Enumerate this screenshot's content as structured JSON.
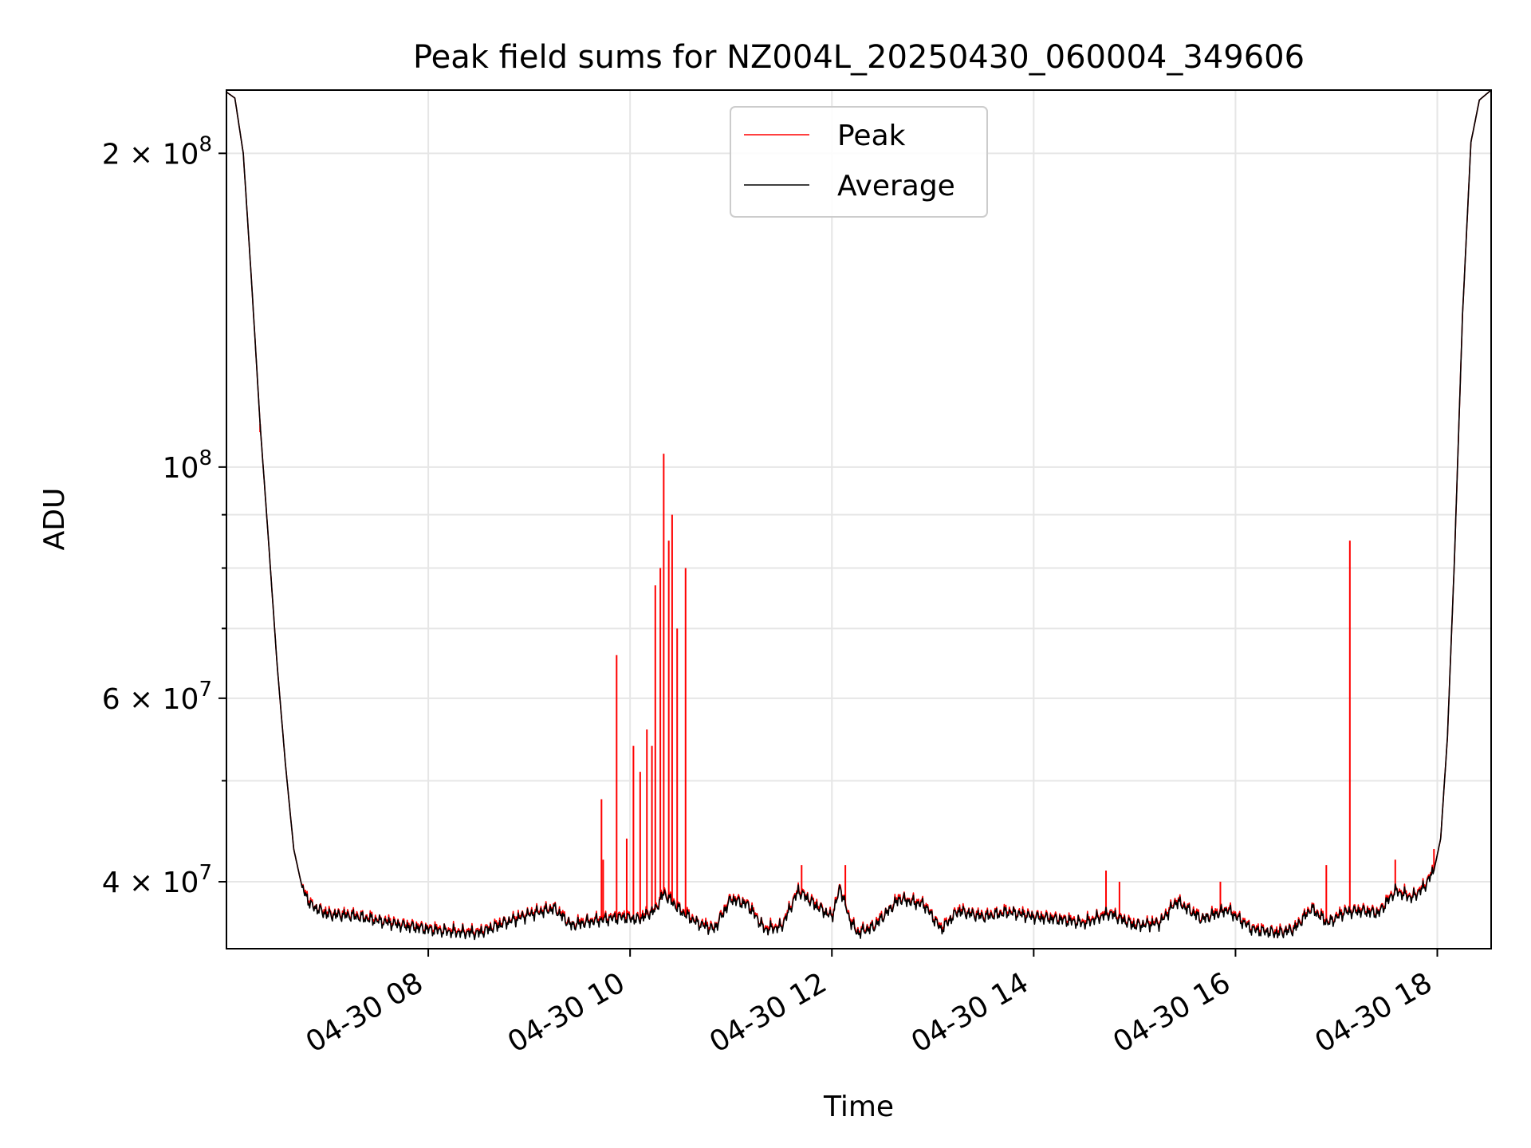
{
  "chart_data": {
    "type": "line",
    "title": "Peak field sums for NZ004L_20250430_060004_349606",
    "xlabel": "Time",
    "ylabel": "ADU",
    "y_scale": "log",
    "ylim": [
      34500000,
      230000000
    ],
    "xlim": [
      "04-30 06:00",
      "04-30 18:32"
    ],
    "grid": true,
    "legend_position": "top-center",
    "x_ticks": [
      "04-30 08",
      "04-30 10",
      "04-30 12",
      "04-30 14",
      "04-30 16",
      "04-30 18"
    ],
    "y_major_ticks": [
      {
        "value": 40000000,
        "label_base": "4 × 10",
        "label_exp": "7"
      },
      {
        "value": 60000000,
        "label_base": "6 × 10",
        "label_exp": "7"
      },
      {
        "value": 100000000,
        "label_base": "10",
        "label_exp": "8"
      },
      {
        "value": 200000000,
        "label_base": "2 × 10",
        "label_exp": "8"
      }
    ],
    "y_minor_ticks": [
      50000000,
      70000000,
      80000000,
      90000000,
      300000000
    ],
    "series": [
      {
        "name": "Peak",
        "color": "#ff0000",
        "baseline": "average",
        "spikes": [
          {
            "x": "04-30 06:20",
            "y": 108000000
          },
          {
            "x": "04-30 09:43",
            "y": 48000000
          },
          {
            "x": "04-30 09:44",
            "y": 42000000
          },
          {
            "x": "04-30 09:52",
            "y": 66000000
          },
          {
            "x": "04-30 09:58",
            "y": 44000000
          },
          {
            "x": "04-30 10:02",
            "y": 54000000
          },
          {
            "x": "04-30 10:06",
            "y": 51000000
          },
          {
            "x": "04-30 10:10",
            "y": 56000000
          },
          {
            "x": "04-30 10:13",
            "y": 54000000
          },
          {
            "x": "04-30 10:15",
            "y": 77000000
          },
          {
            "x": "04-30 10:18",
            "y": 80000000
          },
          {
            "x": "04-30 10:20",
            "y": 103000000
          },
          {
            "x": "04-30 10:23",
            "y": 85000000
          },
          {
            "x": "04-30 10:25",
            "y": 90000000
          },
          {
            "x": "04-30 10:28",
            "y": 70000000
          },
          {
            "x": "04-30 10:33",
            "y": 80000000
          },
          {
            "x": "04-30 11:42",
            "y": 41500000
          },
          {
            "x": "04-30 12:08",
            "y": 41500000
          },
          {
            "x": "04-30 14:43",
            "y": 41000000
          },
          {
            "x": "04-30 14:51",
            "y": 40000000
          },
          {
            "x": "04-30 15:51",
            "y": 40000000
          },
          {
            "x": "04-30 16:54",
            "y": 41500000
          },
          {
            "x": "04-30 17:08",
            "y": 85000000
          },
          {
            "x": "04-30 17:35",
            "y": 42000000
          },
          {
            "x": "04-30 17:58",
            "y": 43000000
          }
        ]
      },
      {
        "name": "Average",
        "color": "#000000",
        "points": [
          [
            "04-30 06:00",
            229000000
          ],
          [
            "04-30 06:05",
            226000000
          ],
          [
            "04-30 06:10",
            200000000
          ],
          [
            "04-30 06:15",
            150000000
          ],
          [
            "04-30 06:20",
            110000000
          ],
          [
            "04-30 06:25",
            85000000
          ],
          [
            "04-30 06:30",
            65000000
          ],
          [
            "04-30 06:35",
            52000000
          ],
          [
            "04-30 06:40",
            43000000
          ],
          [
            "04-30 06:45",
            39500000
          ],
          [
            "04-30 06:50",
            38000000
          ],
          [
            "04-30 07:00",
            37200000
          ],
          [
            "04-30 07:15",
            37100000
          ],
          [
            "04-30 07:30",
            36700000
          ],
          [
            "04-30 07:45",
            36300000
          ],
          [
            "04-30 08:00",
            36000000
          ],
          [
            "04-30 08:15",
            35800000
          ],
          [
            "04-30 08:30",
            35700000
          ],
          [
            "04-30 08:45",
            36500000
          ],
          [
            "04-30 09:00",
            37200000
          ],
          [
            "04-30 09:15",
            37700000
          ],
          [
            "04-30 09:25",
            36300000
          ],
          [
            "04-30 09:35",
            36600000
          ],
          [
            "04-30 09:45",
            36800000
          ],
          [
            "04-30 09:55",
            37000000
          ],
          [
            "04-30 10:05",
            36800000
          ],
          [
            "04-30 10:15",
            37600000
          ],
          [
            "04-30 10:20",
            39000000
          ],
          [
            "04-30 10:30",
            37500000
          ],
          [
            "04-30 10:40",
            36500000
          ],
          [
            "04-30 10:50",
            36000000
          ],
          [
            "04-30 11:00",
            38500000
          ],
          [
            "04-30 11:10",
            38000000
          ],
          [
            "04-30 11:20",
            36000000
          ],
          [
            "04-30 11:30",
            36200000
          ],
          [
            "04-30 11:40",
            39200000
          ],
          [
            "04-30 11:50",
            38000000
          ],
          [
            "04-30 12:00",
            37000000
          ],
          [
            "04-30 12:05",
            39500000
          ],
          [
            "04-30 12:10",
            37000000
          ],
          [
            "04-30 12:15",
            35700000
          ],
          [
            "04-30 12:25",
            36200000
          ],
          [
            "04-30 12:40",
            38500000
          ],
          [
            "04-30 12:55",
            38000000
          ],
          [
            "04-30 13:05",
            36000000
          ],
          [
            "04-30 13:15",
            37500000
          ],
          [
            "04-30 13:30",
            37000000
          ],
          [
            "04-30 13:45",
            37400000
          ],
          [
            "04-30 14:00",
            37000000
          ],
          [
            "04-30 14:15",
            36800000
          ],
          [
            "04-30 14:30",
            36500000
          ],
          [
            "04-30 14:45",
            37300000
          ],
          [
            "04-30 15:00",
            36300000
          ],
          [
            "04-30 15:15",
            36500000
          ],
          [
            "04-30 15:25",
            38300000
          ],
          [
            "04-30 15:40",
            36800000
          ],
          [
            "04-30 15:55",
            37600000
          ],
          [
            "04-30 16:10",
            36000000
          ],
          [
            "04-30 16:25",
            35700000
          ],
          [
            "04-30 16:35",
            36000000
          ],
          [
            "04-30 16:45",
            37700000
          ],
          [
            "04-30 16:55",
            36500000
          ],
          [
            "04-30 17:05",
            37400000
          ],
          [
            "04-30 17:15",
            37500000
          ],
          [
            "04-30 17:25",
            37300000
          ],
          [
            "04-30 17:35",
            39200000
          ],
          [
            "04-30 17:45",
            38600000
          ],
          [
            "04-30 17:52",
            39500000
          ],
          [
            "04-30 17:58",
            41000000
          ],
          [
            "04-30 18:02",
            44000000
          ],
          [
            "04-30 18:06",
            55000000
          ],
          [
            "04-30 18:10",
            80000000
          ],
          [
            "04-30 18:15",
            140000000
          ],
          [
            "04-30 18:20",
            205000000
          ],
          [
            "04-30 18:25",
            225000000
          ],
          [
            "04-30 18:32",
            230000000
          ]
        ]
      }
    ]
  }
}
